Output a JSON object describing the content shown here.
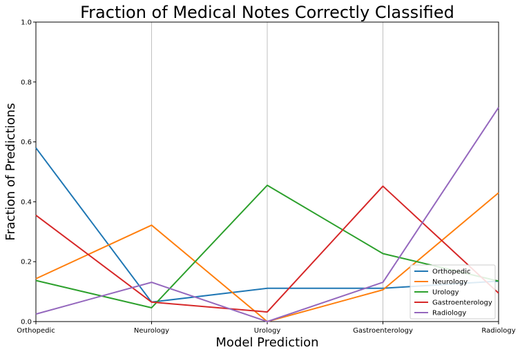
{
  "chart_data": {
    "type": "line",
    "title": "Fraction of Medical Notes Correctly Classified",
    "xlabel": "Model Prediction",
    "ylabel": "Fraction of Predictions",
    "categories": [
      "Orthopedic",
      "Neurology",
      "Urology",
      "Gastroenterology",
      "Radiology"
    ],
    "ylim": [
      0,
      1
    ],
    "yticks": [
      "0.0",
      "0.2",
      "0.4",
      "0.6",
      "0.8",
      "1.0"
    ],
    "grid": "vertical lines at each category",
    "legend_position": "lower-right",
    "series": [
      {
        "name": "Orthopedic",
        "color": "#1f77b4",
        "values": [
          0.58,
          0.065,
          0.111,
          0.111,
          0.135
        ]
      },
      {
        "name": "Neurology",
        "color": "#ff7f0e",
        "values": [
          0.143,
          0.322,
          0.0,
          0.106,
          0.43
        ]
      },
      {
        "name": "Urology",
        "color": "#2ca02c",
        "values": [
          0.137,
          0.046,
          0.455,
          0.227,
          0.135
        ]
      },
      {
        "name": "Gastroenterology",
        "color": "#d62728",
        "values": [
          0.355,
          0.065,
          0.032,
          0.452,
          0.095
        ]
      },
      {
        "name": "Radiology",
        "color": "#9467bd",
        "values": [
          0.025,
          0.131,
          0.0,
          0.131,
          0.715
        ]
      }
    ]
  }
}
